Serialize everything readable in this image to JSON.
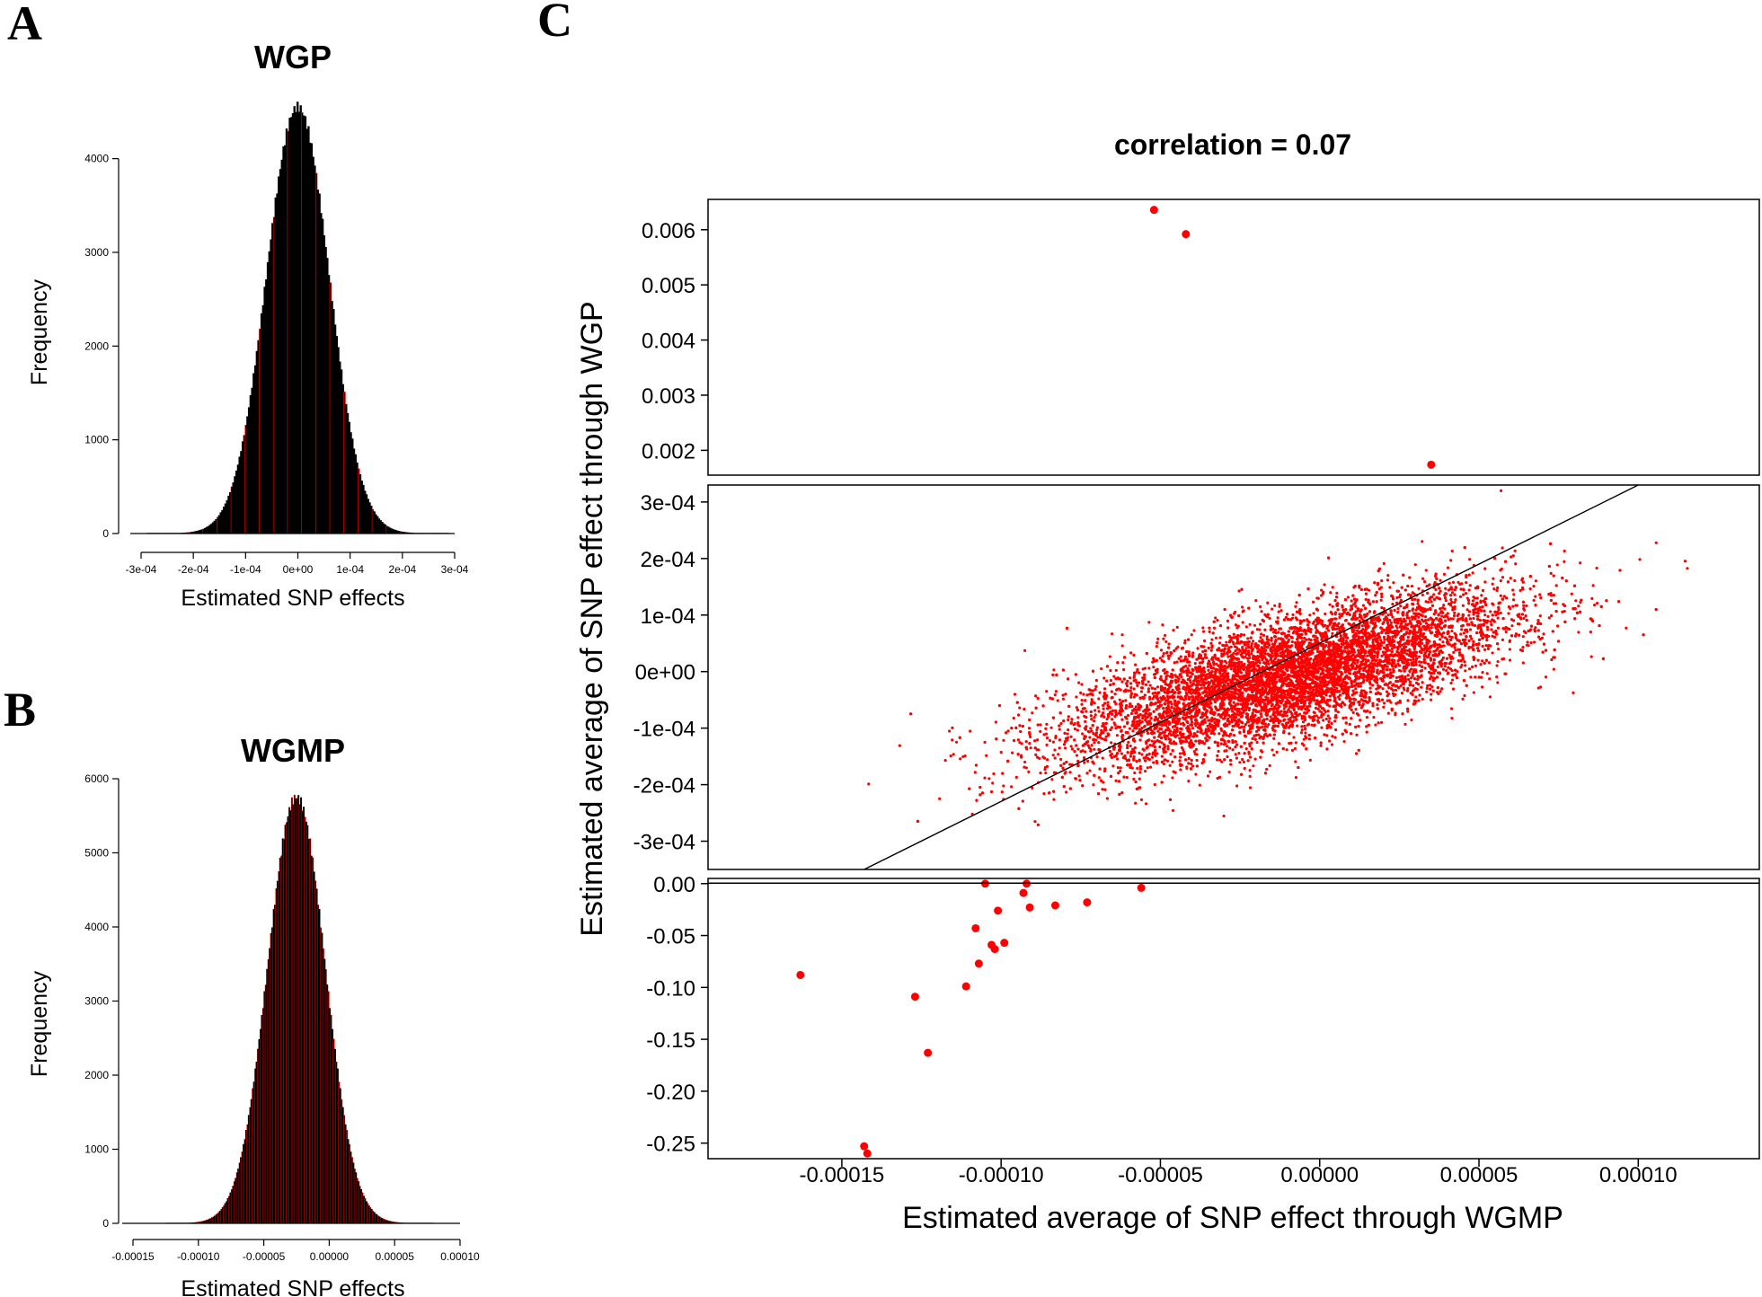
{
  "panels": {
    "A": "A",
    "B": "B",
    "C": "C"
  },
  "colors": {
    "bar_fill": "#000000",
    "bar_stroke": "#ff0000",
    "points": "#ff0000",
    "line": "#000000",
    "axis": "#000000"
  },
  "chart_data": [
    {
      "panel": "A",
      "type": "bar",
      "title": "WGP",
      "xlabel": "Estimated SNP effects",
      "ylabel": "Frequency",
      "xlim": [
        -0.0003,
        0.0003
      ],
      "ylim": [
        0,
        4600
      ],
      "x_ticks": [
        -0.0003,
        -0.0002,
        -0.0001,
        0,
        0.0001,
        0.0002,
        0.0003
      ],
      "x_tick_labels": [
        "-3e-04",
        "-2e-04",
        "-1e-04",
        "0e+00",
        "1e-04",
        "2e-04",
        "3e-04"
      ],
      "y_ticks": [
        0,
        1000,
        2000,
        3000,
        4000
      ],
      "y_tick_labels": [
        "0",
        "1000",
        "2000",
        "3000",
        "4000"
      ],
      "distribution": {
        "mean": 0.0,
        "sd": 6e-05,
        "peak": 4550,
        "bin_width": 3e-06,
        "range": [
          -0.00029,
          0.00029
        ]
      }
    },
    {
      "panel": "B",
      "type": "bar",
      "title": "WGMP",
      "xlabel": "Estimated SNP effects",
      "ylabel": "Frequency",
      "xlim": [
        -0.00015,
        0.0001
      ],
      "ylim": [
        0,
        6000
      ],
      "x_ticks": [
        -0.00015,
        -0.0001,
        -5e-05,
        0,
        5e-05,
        0.0001
      ],
      "x_tick_labels": [
        "-0.00015",
        "-0.00010",
        "-0.00005",
        "0.00000",
        "0.00005",
        "0.00010"
      ],
      "y_ticks": [
        0,
        1000,
        2000,
        3000,
        4000,
        5000,
        6000
      ],
      "y_tick_labels": [
        "0",
        "1000",
        "2000",
        "3000",
        "4000",
        "5000",
        "6000"
      ],
      "distribution": {
        "mean": -2.5e-05,
        "sd": 2.2e-05,
        "peak": 5750,
        "bin_width": 1e-06,
        "range": [
          -0.000125,
          8e-05
        ]
      }
    },
    {
      "panel": "C",
      "type": "scatter",
      "title": "correlation = 0.07",
      "xlabel": "Estimated average of SNP effect through WGMP",
      "ylabel": "Estimated average of SNP effect through WGP",
      "xlim": [
        -0.000192,
        0.000138
      ],
      "x_ticks": [
        -0.00015,
        -0.0001,
        -5e-05,
        0,
        5e-05,
        0.0001
      ],
      "x_tick_labels": [
        "-0.00015",
        "-0.00010",
        "-0.00005",
        "0.00000",
        "0.00005",
        "0.00010"
      ],
      "segments": [
        {
          "name": "upper",
          "ylim": [
            0.00155,
            0.00655
          ],
          "y_ticks": [
            0.002,
            0.003,
            0.004,
            0.005,
            0.006
          ],
          "y_tick_labels": [
            "0.002",
            "0.003",
            "0.004",
            "0.005",
            "0.006"
          ],
          "points": [
            [
              -5.2e-05,
              0.00636
            ],
            [
              -4.2e-05,
              0.00592
            ],
            [
              3.5e-05,
              0.00174
            ]
          ]
        },
        {
          "name": "middle",
          "ylim": [
            -0.00035,
            0.00033
          ],
          "y_ticks": [
            -0.0003,
            -0.0002,
            -0.0001,
            0,
            0.0001,
            0.0002,
            0.0003
          ],
          "y_tick_labels": [
            "-3e-04",
            "-2e-04",
            "-1e-04",
            "0e+00",
            "1e-04",
            "2e-04",
            "3e-04"
          ],
          "cloud": {
            "center": [
              -1e-05,
              -1e-05
            ],
            "sd_x": 3.5e-05,
            "sd_y": 7.5e-05,
            "correlation": 0.7,
            "range_x": [
              -0.00016,
              9.5e-05
            ]
          },
          "regression_line": {
            "from": [
              -0.000143,
              -0.00035
            ],
            "to": [
              0.0001,
              0.00033
            ]
          }
        },
        {
          "name": "lower",
          "ylim": [
            -0.265,
            0.005
          ],
          "y_ticks": [
            0,
            -0.05,
            -0.1,
            -0.15,
            -0.2,
            -0.25
          ],
          "y_tick_labels": [
            "0.00",
            "-0.05",
            "-0.10",
            "-0.15",
            "-0.20",
            "-0.25"
          ],
          "points": [
            [
              -0.000163,
              -0.088
            ],
            [
              -0.000143,
              -0.253
            ],
            [
              -0.000142,
              -0.26
            ],
            [
              -0.000127,
              -0.109
            ],
            [
              -0.000123,
              -0.163
            ],
            [
              -0.000111,
              -0.099
            ],
            [
              -0.000108,
              -0.043
            ],
            [
              -0.000107,
              -0.077
            ],
            [
              -0.000105,
              0.0
            ],
            [
              -0.000103,
              -0.059
            ],
            [
              -0.000102,
              -0.063
            ],
            [
              -0.000101,
              -0.026
            ],
            [
              -9.9e-05,
              -0.057
            ],
            [
              -9.3e-05,
              -0.009
            ],
            [
              -9.2e-05,
              0.0
            ],
            [
              -9.1e-05,
              -0.023
            ],
            [
              -8.3e-05,
              -0.021
            ],
            [
              -7.3e-05,
              -0.018
            ],
            [
              -5.6e-05,
              -0.004
            ]
          ]
        }
      ]
    }
  ]
}
